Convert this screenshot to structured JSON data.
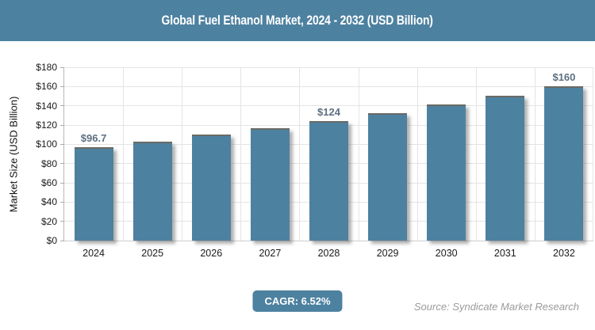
{
  "header": {
    "title": "Global Fuel Ethanol Market, 2024 - 2032 (USD Billion)"
  },
  "colors": {
    "accent": "#4D81A0",
    "bar_fill": "#4D81A0",
    "bar_top_border": "#6A6A64",
    "grid": "#E4E4E4",
    "axis": "#BDBDBD",
    "value_label": "#5D6F80",
    "tick_label": "#1A1A1A",
    "source_text": "#9B9B9B"
  },
  "chart_data": {
    "type": "bar",
    "title": "Global Fuel Ethanol Market, 2024 - 2032 (USD Billion)",
    "categories": [
      "2024",
      "2025",
      "2026",
      "2027",
      "2028",
      "2029",
      "2030",
      "2031",
      "2032"
    ],
    "values": [
      96.7,
      103,
      109.8,
      116.9,
      124,
      132.6,
      141.2,
      150.4,
      160
    ],
    "bar_labels": [
      "$96.7",
      "",
      "",
      "",
      "$124",
      "",
      "",
      "",
      "$160"
    ],
    "xlabel": "",
    "ylabel": "Market Size (USD Billion)",
    "ylim": [
      0,
      180
    ],
    "ytick_step": 20,
    "ytick_labels": [
      "$0",
      "$20",
      "$40",
      "$60",
      "$80",
      "$100",
      "$120",
      "$140",
      "$160",
      "$180"
    ],
    "grid": true,
    "legend": false
  },
  "footer": {
    "cagr_label": "CAGR: 6.52%",
    "source": "Source: Syndicate Market Research"
  }
}
